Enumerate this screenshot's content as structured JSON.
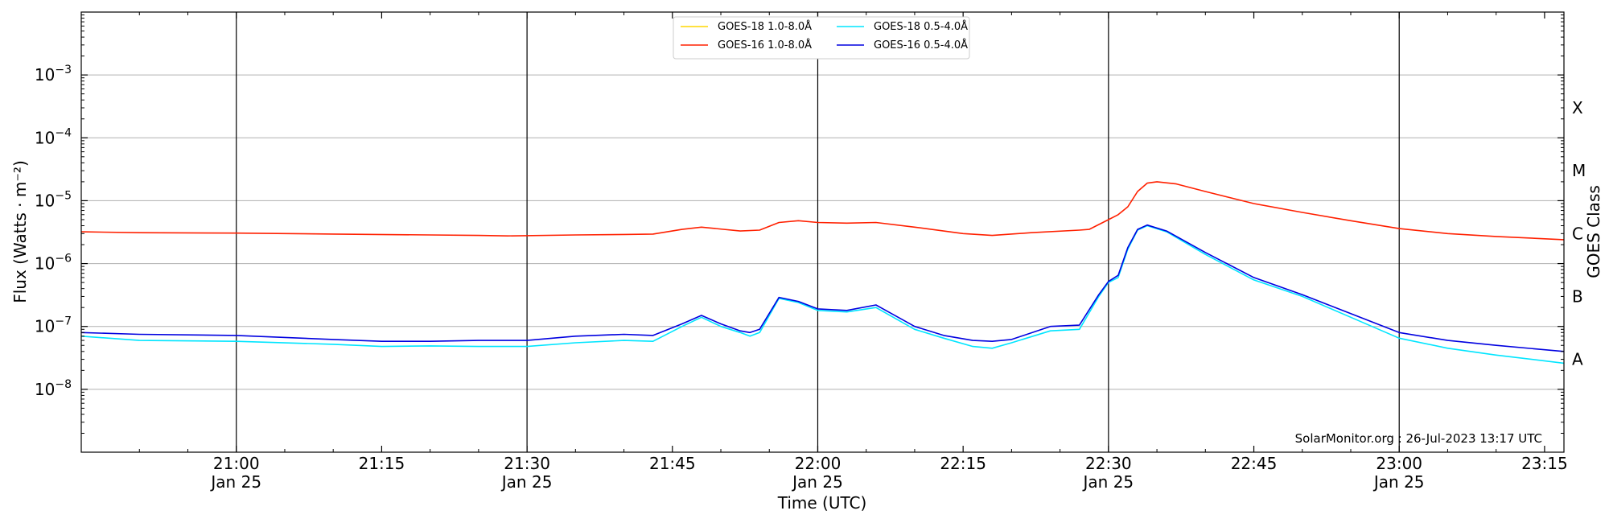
{
  "chart_data": {
    "type": "line",
    "title": "",
    "xlabel": "Time (UTC)",
    "ylabel": "Flux (Watts · m⁻²)",
    "y2label": "GOES Class",
    "yscale": "log",
    "ylim": [
      1e-09,
      0.01
    ],
    "xlim": [
      "20:44",
      "23:17"
    ],
    "date": "Jan 25",
    "x_ticks": [
      "21:00",
      "21:15",
      "21:30",
      "21:45",
      "22:00",
      "22:15",
      "22:30",
      "22:45",
      "23:00",
      "23:15"
    ],
    "x_tick_dates": [
      "Jan 25",
      "",
      "Jan 25",
      "",
      "Jan 25",
      "",
      "Jan 25",
      "",
      "Jan 25",
      ""
    ],
    "vlines": [
      "21:00",
      "21:30",
      "22:00",
      "22:30",
      "23:00"
    ],
    "y_ticks": [
      {
        "value": 1e-08,
        "base": "10",
        "exp": "−8"
      },
      {
        "value": 1e-07,
        "base": "10",
        "exp": "−7"
      },
      {
        "value": 1e-06,
        "base": "10",
        "exp": "−6"
      },
      {
        "value": 1e-05,
        "base": "10",
        "exp": "−5"
      },
      {
        "value": 0.0001,
        "base": "10",
        "exp": "−4"
      },
      {
        "value": 0.001,
        "base": "10",
        "exp": "−3"
      }
    ],
    "goes_classes": [
      {
        "label": "A",
        "value": 3e-08
      },
      {
        "label": "B",
        "value": 3e-07
      },
      {
        "label": "C",
        "value": 3e-06
      },
      {
        "label": "M",
        "value": 3e-05
      },
      {
        "label": "X",
        "value": 0.0003
      }
    ],
    "grid": true,
    "legend_position": "top-center",
    "watermark": "SolarMonitor.org : 26-Jul-2023 13:17 UTC",
    "series": [
      {
        "name": "GOES-18 1.0-8.0Å",
        "color": "#ffd700",
        "x": [],
        "y": []
      },
      {
        "name": "GOES-16 1.0-8.0Å",
        "color": "#ff2000",
        "x": [
          "20:44",
          "20:50",
          "21:00",
          "21:10",
          "21:20",
          "21:25",
          "21:28",
          "21:35",
          "21:40",
          "21:43",
          "21:46",
          "21:48",
          "21:52",
          "21:54",
          "21:56",
          "21:58",
          "22:00",
          "22:03",
          "22:06",
          "22:10",
          "22:15",
          "22:18",
          "22:22",
          "22:27",
          "22:28",
          "22:30",
          "22:31",
          "22:32",
          "22:33",
          "22:34",
          "22:35",
          "22:37",
          "22:40",
          "22:45",
          "22:50",
          "22:55",
          "23:00",
          "23:05",
          "23:10",
          "23:17"
        ],
        "y": [
          3.2e-06,
          3.1e-06,
          3.05e-06,
          2.95e-06,
          2.85e-06,
          2.8e-06,
          2.75e-06,
          2.85e-06,
          2.9e-06,
          2.95e-06,
          3.5e-06,
          3.8e-06,
          3.3e-06,
          3.4e-06,
          4.5e-06,
          4.8e-06,
          4.5e-06,
          4.4e-06,
          4.5e-06,
          3.8e-06,
          3e-06,
          2.8e-06,
          3.1e-06,
          3.4e-06,
          3.5e-06,
          5e-06,
          6e-06,
          8e-06,
          1.4e-05,
          1.9e-05,
          2e-05,
          1.85e-05,
          1.4e-05,
          9e-06,
          6.5e-06,
          4.8e-06,
          3.6e-06,
          3e-06,
          2.7e-06,
          2.4e-06
        ]
      },
      {
        "name": "GOES-18 0.5-4.0Å",
        "color": "#00e5ff",
        "x": [
          "20:44",
          "20:50",
          "21:00",
          "21:10",
          "21:15",
          "21:20",
          "21:25",
          "21:30",
          "21:35",
          "21:40",
          "21:43",
          "21:46",
          "21:48",
          "21:50",
          "21:52",
          "21:53",
          "21:54",
          "21:56",
          "21:58",
          "22:00",
          "22:03",
          "22:06",
          "22:10",
          "22:13",
          "22:16",
          "22:18",
          "22:20",
          "22:24",
          "22:27",
          "22:29",
          "22:30",
          "22:31",
          "22:32",
          "22:33",
          "22:34",
          "22:36",
          "22:40",
          "22:45",
          "22:50",
          "22:55",
          "23:00",
          "23:05",
          "23:10",
          "23:17"
        ],
        "y": [
          7e-08,
          6e-08,
          5.8e-08,
          5.2e-08,
          4.8e-08,
          4.9e-08,
          4.8e-08,
          4.8e-08,
          5.5e-08,
          6e-08,
          5.8e-08,
          1e-07,
          1.4e-07,
          1e-07,
          8e-08,
          7e-08,
          8e-08,
          2.8e-07,
          2.4e-07,
          1.8e-07,
          1.7e-07,
          2e-07,
          9e-08,
          6.5e-08,
          4.8e-08,
          4.5e-08,
          5.5e-08,
          8.5e-08,
          9e-08,
          3e-07,
          5e-07,
          6e-07,
          1.7e-06,
          3.4e-06,
          4e-06,
          3.2e-06,
          1.4e-06,
          5.5e-07,
          3e-07,
          1.4e-07,
          6.5e-08,
          4.5e-08,
          3.5e-08,
          2.6e-08
        ]
      },
      {
        "name": "GOES-16 0.5-4.0Å",
        "color": "#0000e0",
        "x": [
          "20:44",
          "20:50",
          "21:00",
          "21:10",
          "21:15",
          "21:20",
          "21:25",
          "21:30",
          "21:35",
          "21:40",
          "21:43",
          "21:46",
          "21:48",
          "21:50",
          "21:52",
          "21:53",
          "21:54",
          "21:56",
          "21:58",
          "22:00",
          "22:03",
          "22:06",
          "22:10",
          "22:13",
          "22:16",
          "22:18",
          "22:20",
          "22:24",
          "22:27",
          "22:29",
          "22:30",
          "22:31",
          "22:32",
          "22:33",
          "22:34",
          "22:36",
          "22:40",
          "22:45",
          "22:50",
          "22:55",
          "23:00",
          "23:05",
          "23:10",
          "23:17"
        ],
        "y": [
          8e-08,
          7.5e-08,
          7.2e-08,
          6.2e-08,
          5.8e-08,
          5.8e-08,
          6e-08,
          6e-08,
          7e-08,
          7.5e-08,
          7.2e-08,
          1.1e-07,
          1.5e-07,
          1.1e-07,
          8.5e-08,
          8e-08,
          9e-08,
          2.9e-07,
          2.5e-07,
          1.9e-07,
          1.8e-07,
          2.2e-07,
          1e-07,
          7.2e-08,
          6e-08,
          5.8e-08,
          6.2e-08,
          1e-07,
          1.05e-07,
          3.2e-07,
          5.2e-07,
          6.5e-07,
          1.8e-06,
          3.5e-06,
          4.1e-06,
          3.3e-06,
          1.5e-06,
          6e-07,
          3.2e-07,
          1.6e-07,
          8e-08,
          6e-08,
          5e-08,
          4e-08
        ]
      }
    ]
  }
}
